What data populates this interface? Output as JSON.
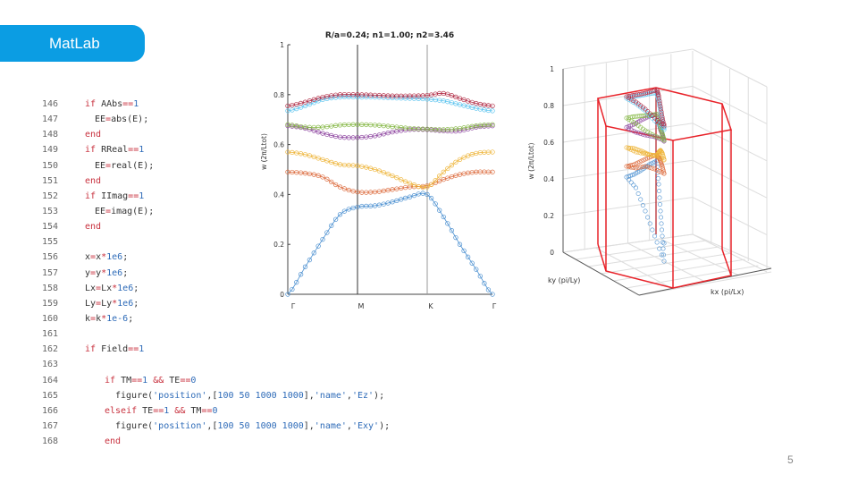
{
  "header": {
    "title": "MatLab",
    "color": "#0b9de3"
  },
  "code": [
    {
      "n": "146",
      "indent": 0,
      "seg": [
        [
          "if",
          "kw"
        ],
        [
          " AAbs",
          "tx"
        ],
        [
          "==",
          "op"
        ],
        [
          "1",
          "num"
        ]
      ]
    },
    {
      "n": "147",
      "indent": 1,
      "seg": [
        [
          "EE",
          "tx"
        ],
        [
          "=",
          "op"
        ],
        [
          "abs(E);",
          "tx"
        ]
      ]
    },
    {
      "n": "148",
      "indent": 0,
      "seg": [
        [
          "end",
          "kw"
        ]
      ]
    },
    {
      "n": "149",
      "indent": 0,
      "seg": [
        [
          "if",
          "kw"
        ],
        [
          " RReal",
          "tx"
        ],
        [
          "==",
          "op"
        ],
        [
          "1",
          "num"
        ]
      ]
    },
    {
      "n": "150",
      "indent": 1,
      "seg": [
        [
          "EE",
          "tx"
        ],
        [
          "=",
          "op"
        ],
        [
          "real(E);",
          "tx"
        ]
      ]
    },
    {
      "n": "151",
      "indent": 0,
      "seg": [
        [
          "end",
          "kw"
        ]
      ]
    },
    {
      "n": "152",
      "indent": 0,
      "seg": [
        [
          "if",
          "kw"
        ],
        [
          " IImag",
          "tx"
        ],
        [
          "==",
          "op"
        ],
        [
          "1",
          "num"
        ]
      ]
    },
    {
      "n": "153",
      "indent": 1,
      "seg": [
        [
          "EE",
          "tx"
        ],
        [
          "=",
          "op"
        ],
        [
          "imag(E);",
          "tx"
        ]
      ]
    },
    {
      "n": "154",
      "indent": 0,
      "seg": [
        [
          "end",
          "kw"
        ]
      ]
    },
    {
      "n": "155",
      "indent": 0,
      "seg": []
    },
    {
      "n": "156",
      "indent": 0,
      "seg": [
        [
          "x",
          "tx"
        ],
        [
          "=",
          "op"
        ],
        [
          "x",
          "tx"
        ],
        [
          "*",
          "op"
        ],
        [
          "1e6",
          "num"
        ],
        [
          ";",
          "tx"
        ]
      ]
    },
    {
      "n": "157",
      "indent": 0,
      "seg": [
        [
          "y",
          "tx"
        ],
        [
          "=",
          "op"
        ],
        [
          "y",
          "tx"
        ],
        [
          "*",
          "op"
        ],
        [
          "1e6",
          "num"
        ],
        [
          ";",
          "tx"
        ]
      ]
    },
    {
      "n": "158",
      "indent": 0,
      "seg": [
        [
          "Lx",
          "tx"
        ],
        [
          "=",
          "op"
        ],
        [
          "Lx",
          "tx"
        ],
        [
          "*",
          "op"
        ],
        [
          "1e6",
          "num"
        ],
        [
          ";",
          "tx"
        ]
      ]
    },
    {
      "n": "159",
      "indent": 0,
      "seg": [
        [
          "Ly",
          "tx"
        ],
        [
          "=",
          "op"
        ],
        [
          "Ly",
          "tx"
        ],
        [
          "*",
          "op"
        ],
        [
          "1e6",
          "num"
        ],
        [
          ";",
          "tx"
        ]
      ]
    },
    {
      "n": "160",
      "indent": 0,
      "seg": [
        [
          "k",
          "tx"
        ],
        [
          "=",
          "op"
        ],
        [
          "k",
          "tx"
        ],
        [
          "*",
          "op"
        ],
        [
          "1e-6",
          "num"
        ],
        [
          ";",
          "tx"
        ]
      ]
    },
    {
      "n": "161",
      "indent": 0,
      "seg": []
    },
    {
      "n": "162",
      "indent": 0,
      "seg": [
        [
          "if",
          "kw"
        ],
        [
          " Field",
          "tx"
        ],
        [
          "==",
          "op"
        ],
        [
          "1",
          "num"
        ]
      ]
    },
    {
      "n": "163",
      "indent": 0,
      "seg": []
    },
    {
      "n": "164",
      "indent": 2,
      "seg": [
        [
          "if",
          "kw"
        ],
        [
          " TM",
          "tx"
        ],
        [
          "==",
          "op"
        ],
        [
          "1",
          "num"
        ],
        [
          " ",
          "tx"
        ],
        [
          "&&",
          "op"
        ],
        [
          " TE",
          "tx"
        ],
        [
          "==",
          "op"
        ],
        [
          "0",
          "num"
        ]
      ]
    },
    {
      "n": "165",
      "indent": 3,
      "seg": [
        [
          "figure(",
          "tx"
        ],
        [
          "'position'",
          "str"
        ],
        [
          ",[",
          "tx"
        ],
        [
          "100 50 1000 1000",
          "num"
        ],
        [
          "],",
          "tx"
        ],
        [
          "'name'",
          "str"
        ],
        [
          ",",
          "tx"
        ],
        [
          "'Ez'",
          "str"
        ],
        [
          ");",
          "tx"
        ]
      ]
    },
    {
      "n": "166",
      "indent": 2,
      "seg": [
        [
          "elseif",
          "kw"
        ],
        [
          " TE",
          "tx"
        ],
        [
          "==",
          "op"
        ],
        [
          "1",
          "num"
        ],
        [
          " ",
          "tx"
        ],
        [
          "&&",
          "op"
        ],
        [
          " TM",
          "tx"
        ],
        [
          "==",
          "op"
        ],
        [
          "0",
          "num"
        ]
      ]
    },
    {
      "n": "167",
      "indent": 3,
      "seg": [
        [
          "figure(",
          "tx"
        ],
        [
          "'position'",
          "str"
        ],
        [
          ",[",
          "tx"
        ],
        [
          "100 50 1000 1000",
          "num"
        ],
        [
          "],",
          "tx"
        ],
        [
          "'name'",
          "str"
        ],
        [
          ",",
          "tx"
        ],
        [
          "'Exy'",
          "str"
        ],
        [
          ");",
          "tx"
        ]
      ]
    },
    {
      "n": "168",
      "indent": 2,
      "seg": [
        [
          "end",
          "kw"
        ]
      ]
    }
  ],
  "chart_data": [
    {
      "type": "line",
      "title": "R/a=0.24; n1=1.00; n2=3.46",
      "ylabel": "w (2π/Ltot)",
      "xlabel": "",
      "ylim": [
        0,
        1
      ],
      "yticks": [
        "0",
        "0.2",
        "0.4",
        "0.6",
        "0.8",
        "1"
      ],
      "xtick_labels": [
        "Γ",
        "M",
        "K",
        "Γ"
      ],
      "x": [
        0,
        0.25,
        0.5,
        0.75,
        1,
        1.25,
        1.5,
        1.75,
        2,
        2.25,
        2.5,
        2.75,
        3
      ],
      "markers": "circle",
      "series": [
        {
          "color": "#4a8fd0",
          "values": [
            0,
            0.11,
            0.22,
            0.32,
            0.35,
            0.355,
            0.37,
            0.39,
            0.4,
            0.31,
            0.2,
            0.1,
            0
          ]
        },
        {
          "color": "#dc6a3c",
          "values": [
            0.49,
            0.485,
            0.47,
            0.43,
            0.41,
            0.41,
            0.42,
            0.43,
            0.435,
            0.46,
            0.48,
            0.49,
            0.49
          ]
        },
        {
          "color": "#eeb53a",
          "values": [
            0.57,
            0.56,
            0.54,
            0.52,
            0.515,
            0.5,
            0.475,
            0.445,
            0.43,
            0.49,
            0.54,
            0.565,
            0.57
          ]
        },
        {
          "color": "#8e46a0",
          "values": [
            0.675,
            0.665,
            0.645,
            0.63,
            0.628,
            0.635,
            0.65,
            0.66,
            0.66,
            0.655,
            0.655,
            0.67,
            0.675
          ]
        },
        {
          "color": "#86b846",
          "values": [
            0.68,
            0.67,
            0.67,
            0.678,
            0.68,
            0.678,
            0.672,
            0.665,
            0.662,
            0.66,
            0.665,
            0.675,
            0.68
          ]
        },
        {
          "color": "#5cc4ef",
          "values": [
            0.735,
            0.755,
            0.78,
            0.79,
            0.79,
            0.79,
            0.787,
            0.785,
            0.782,
            0.775,
            0.76,
            0.745,
            0.735
          ]
        },
        {
          "color": "#b02a44",
          "values": [
            0.755,
            0.77,
            0.79,
            0.8,
            0.8,
            0.798,
            0.795,
            0.795,
            0.797,
            0.805,
            0.785,
            0.765,
            0.755
          ]
        }
      ]
    },
    {
      "type": "scatter3d",
      "zlabel": "w (2π/Ltot)",
      "xlabel": "kx (pi/Lx)",
      "ylabel": "ky (pi/Ly)",
      "zlim": [
        0,
        1
      ],
      "zticks": [
        "0",
        "0.2",
        "0.4",
        "0.6",
        "0.8",
        "1"
      ],
      "grid": true,
      "brillouin_zone_color": "#e8232a"
    }
  ],
  "page_number": "5"
}
